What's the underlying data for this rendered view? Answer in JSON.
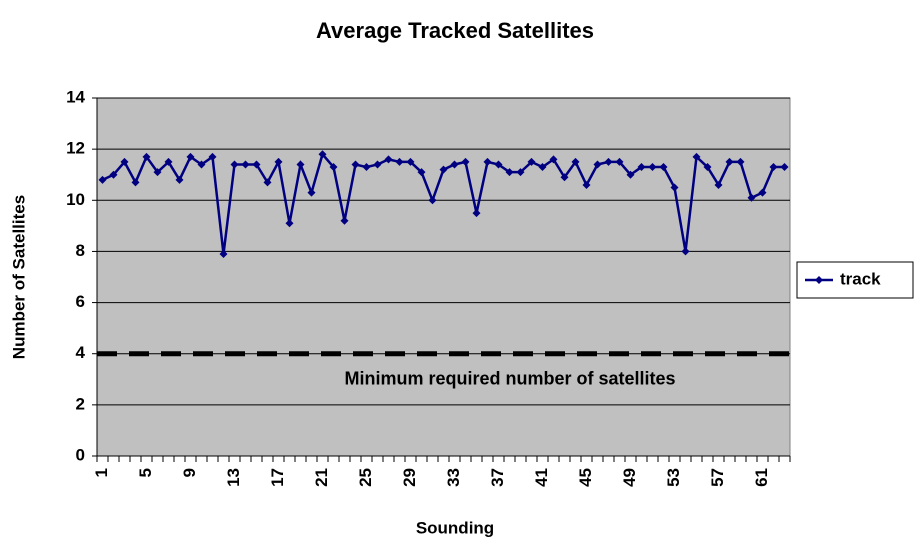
{
  "chart_data": {
    "type": "line",
    "title": "Average Tracked Satellites",
    "x_label": "Sounding",
    "y_label": "Number of Satellites",
    "categories": [
      "1",
      null,
      null,
      null,
      "5",
      null,
      null,
      null,
      "9",
      null,
      null,
      null,
      "13",
      null,
      null,
      null,
      "17",
      null,
      null,
      null,
      "21",
      null,
      null,
      null,
      "25",
      null,
      null,
      null,
      "29",
      null,
      null,
      null,
      "33",
      null,
      null,
      null,
      "37",
      null,
      null,
      null,
      "41",
      null,
      null,
      null,
      "45",
      null,
      null,
      null,
      "49",
      null,
      null,
      null,
      "53",
      null,
      null,
      null,
      "57",
      null,
      null,
      null,
      "61",
      null,
      null
    ],
    "series": [
      {
        "name": "track",
        "color": "#000080",
        "values": [
          10.8,
          11.0,
          11.5,
          10.7,
          11.7,
          11.1,
          11.5,
          10.8,
          11.7,
          11.4,
          11.7,
          7.9,
          11.4,
          11.4,
          11.4,
          10.7,
          11.5,
          9.1,
          11.4,
          10.3,
          11.8,
          11.3,
          9.2,
          11.4,
          11.3,
          11.4,
          11.6,
          11.5,
          11.5,
          11.1,
          10.0,
          11.2,
          11.4,
          11.5,
          9.5,
          11.5,
          11.4,
          11.1,
          11.1,
          11.5,
          11.3,
          11.6,
          10.9,
          11.5,
          10.6,
          11.4,
          11.5,
          11.5,
          11.0,
          11.3,
          11.3,
          11.3,
          10.5,
          8.0,
          11.7,
          11.3,
          10.6,
          11.5,
          11.5,
          10.1,
          10.3,
          11.3,
          11.3
        ]
      }
    ],
    "reference_line": {
      "value": 4,
      "label": "Minimum required number of satellites",
      "color": "#000000"
    },
    "ylim": [
      0,
      14
    ],
    "yticks": [
      0,
      2,
      4,
      6,
      8,
      10,
      12,
      14
    ],
    "grid": true,
    "plot_background": "#c0c0c0",
    "legend": "right"
  }
}
